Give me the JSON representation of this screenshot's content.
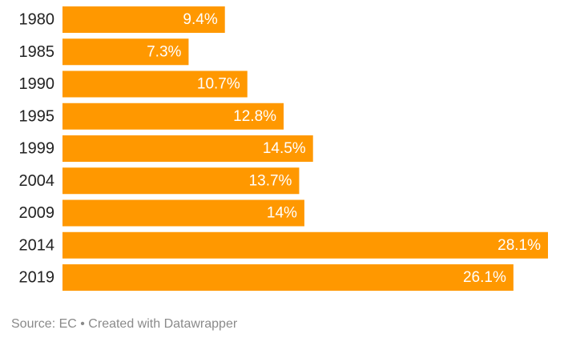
{
  "chart_data": {
    "type": "bar",
    "orientation": "horizontal",
    "categories": [
      "1980",
      "1985",
      "1990",
      "1995",
      "1999",
      "2004",
      "2009",
      "2014",
      "2019"
    ],
    "values": [
      9.4,
      7.3,
      10.7,
      12.8,
      14.5,
      13.7,
      14,
      28.1,
      26.1
    ],
    "value_labels": [
      "9.4%",
      "7.3%",
      "10.7%",
      "12.8%",
      "14.5%",
      "13.7%",
      "14%",
      "28.1%",
      "26.1%"
    ],
    "xlim": [
      0,
      28.1
    ],
    "bar_color": "#ff9800",
    "label_color": "#ffffff",
    "grid": false,
    "title": "",
    "xlabel": "",
    "ylabel": ""
  },
  "footer": {
    "source_text": "Source: EC • Created with Datawrapper"
  }
}
